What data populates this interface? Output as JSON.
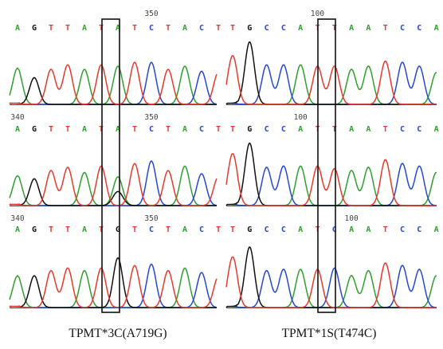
{
  "colors": {
    "A": "#2ca02c",
    "G": "#111111",
    "T": "#e8382a",
    "C": "#2447d6",
    "highlight_box": "#111111"
  },
  "left": {
    "caption": "TPMT*3C(A719G)",
    "sequences": [
      {
        "bases": "AGTTATATCTACT",
        "labels": [
          {
            "text": "350",
            "base_index": 8
          }
        ],
        "highlight_index": 6
      },
      {
        "bases": "AGTTATATCTACT",
        "labels": [
          {
            "text": "340",
            "base_index": 0
          },
          {
            "text": "350",
            "base_index": 8
          }
        ],
        "highlight_index": 6
      },
      {
        "bases": "AGTTATGTCTACT",
        "labels": [
          {
            "text": "340",
            "base_index": 0
          },
          {
            "text": "350",
            "base_index": 8
          }
        ],
        "highlight_index": 6
      }
    ]
  },
  "right": {
    "caption": "TPMT*1S(T474C)",
    "sequences": [
      {
        "bases": "TGCCATTAATCCA",
        "labels": [
          {
            "text": "100",
            "base_index": 5
          }
        ],
        "highlight_index": 6
      },
      {
        "bases": "TGCCATTAATCCA",
        "labels": [
          {
            "text": "100",
            "base_index": 4
          }
        ],
        "highlight_index": 6
      },
      {
        "bases": "TGCCATCAATCCA",
        "labels": [
          {
            "text": "100",
            "base_index": 7
          }
        ],
        "highlight_index": 6
      }
    ]
  }
}
